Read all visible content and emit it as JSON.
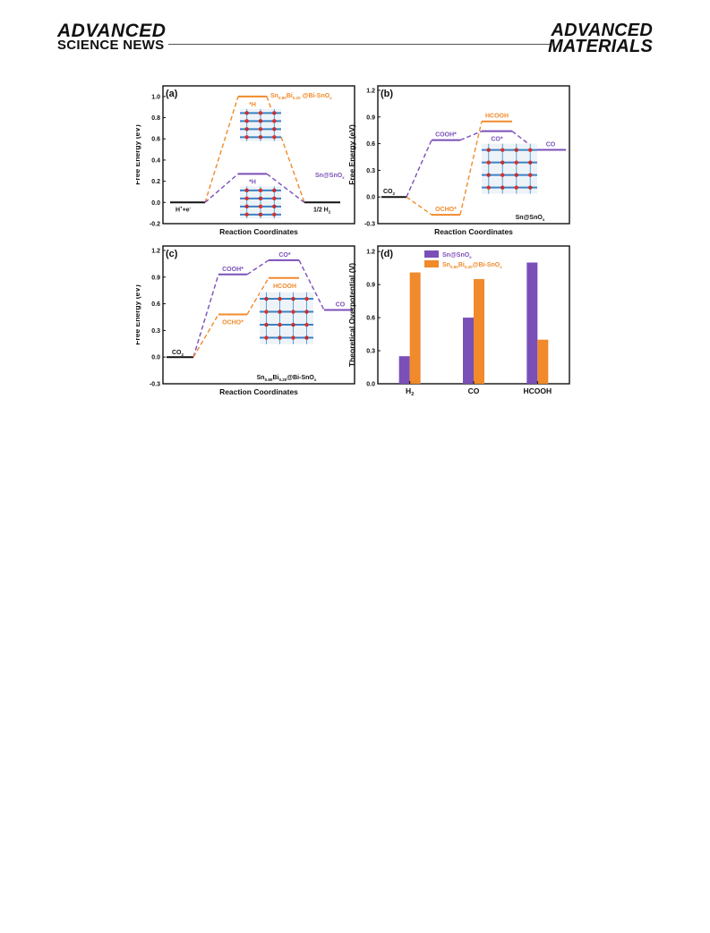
{
  "header": {
    "left_logo_line1": "ADVANCED",
    "left_logo_line2": "SCIENCE NEWS",
    "right_logo_line1": "ADVANCED",
    "right_logo_line2": "MATERIALS"
  },
  "colors": {
    "sn": "#7b4fb8",
    "snbi": "#f08a2b",
    "baseline": "#111111"
  },
  "chart_data": [
    {
      "type": "line",
      "panel_label": "(a)",
      "xlabel": "Reaction Coordinates",
      "ylabel": "Free Energy (eV)",
      "ylim": [
        -0.2,
        1.1
      ],
      "yticks": [
        "-0.2",
        "0.0",
        "0.2",
        "0.4",
        "0.6",
        "0.8",
        "1.0"
      ],
      "steps": [
        {
          "label": "H+ + e-",
          "value": 0.0
        },
        {
          "label": "*H",
          "value": null
        },
        {
          "label": "1/2 H2",
          "value": 0.0
        }
      ],
      "series": [
        {
          "name": "Sn0.80Bi0.20@Bi-SnOx",
          "color": "#f08a2b",
          "values": [
            0.0,
            1.0,
            0.0
          ],
          "state_label": "*H"
        },
        {
          "name": "Sn@SnOx",
          "color": "#7b4fb8",
          "values": [
            0.0,
            0.27,
            0.0
          ],
          "state_label": "*H"
        }
      ],
      "labels": {
        "start": "H+ + e-",
        "end": "1/2 H2",
        "orange_name": "Sn0.80Bi0.20@Bi-SnOx",
        "purple_name": "Sn@SnOx",
        "state": "*H"
      }
    },
    {
      "type": "line",
      "panel_label": "(b)",
      "xlabel": "Reaction Coordinates",
      "ylabel": "Free Energy (eV)",
      "ylim": [
        -0.3,
        1.25
      ],
      "yticks": [
        "-0.3",
        "0.0",
        "0.3",
        "0.6",
        "0.9",
        "1.2"
      ],
      "series": [
        {
          "name": "Sn@SnOx",
          "color": "#7b4fb8",
          "values": [
            0.0,
            0.64,
            0.74,
            0.53
          ],
          "labels": [
            "CO2",
            "COOH*",
            "CO*",
            "CO"
          ]
        },
        {
          "name": "Sn@SnOx",
          "color": "#f08a2b",
          "values": [
            0.0,
            -0.2,
            0.85
          ],
          "labels": [
            "CO2",
            "OCHO*",
            "HCOOH"
          ]
        }
      ],
      "labels": {
        "co2": "CO2",
        "cooh": "COOH*",
        "co_ads": "CO*",
        "co": "CO",
        "ocho": "OCHO*",
        "hcooh": "HCOOH",
        "caption": "Sn@SnOx"
      }
    },
    {
      "type": "line",
      "panel_label": "(c)",
      "xlabel": "Reaction Coordinates",
      "ylabel": "Free Energy (eV)",
      "ylim": [
        -0.3,
        1.25
      ],
      "yticks": [
        "-0.3",
        "0.0",
        "0.3",
        "0.6",
        "0.9",
        "1.2"
      ],
      "series": [
        {
          "name": "Sn0.80Bi0.20@Bi-SnOx",
          "color": "#7b4fb8",
          "values": [
            0.0,
            0.93,
            1.09,
            0.53
          ],
          "labels": [
            "CO2",
            "COOH*",
            "CO*",
            "CO"
          ]
        },
        {
          "name": "Sn0.80Bi0.20@Bi-SnOx",
          "color": "#f08a2b",
          "values": [
            0.0,
            0.48,
            0.89
          ],
          "labels": [
            "CO2",
            "OCHO*",
            "HCOOH"
          ]
        }
      ],
      "labels": {
        "co2": "CO2",
        "cooh": "COOH*",
        "co_ads": "CO*",
        "co": "CO",
        "ocho": "OCHO*",
        "hcooh": "HCOOH",
        "caption": "Sn0.80Bi0.20@Bi-SnOx"
      }
    },
    {
      "type": "bar",
      "panel_label": "(d)",
      "xlabel": "",
      "ylabel": "Theoretical Overpotential (V)",
      "ylim": [
        0.0,
        1.25
      ],
      "yticks": [
        "0.0",
        "0.3",
        "0.6",
        "0.9",
        "1.2"
      ],
      "categories": [
        "H2",
        "CO",
        "HCOOH"
      ],
      "series": [
        {
          "name": "Sn@SnOx",
          "color": "#7b4fb8",
          "values": [
            0.25,
            0.6,
            1.1
          ]
        },
        {
          "name": "Sn0.80Bi0.20@Bi-SnOx",
          "color": "#f08a2b",
          "values": [
            1.01,
            0.95,
            0.4
          ]
        }
      ],
      "legend": [
        "Sn@SnOx",
        "Sn0.80Bi0.20@Bi-SnOx"
      ],
      "legend_position": "top-left"
    }
  ]
}
